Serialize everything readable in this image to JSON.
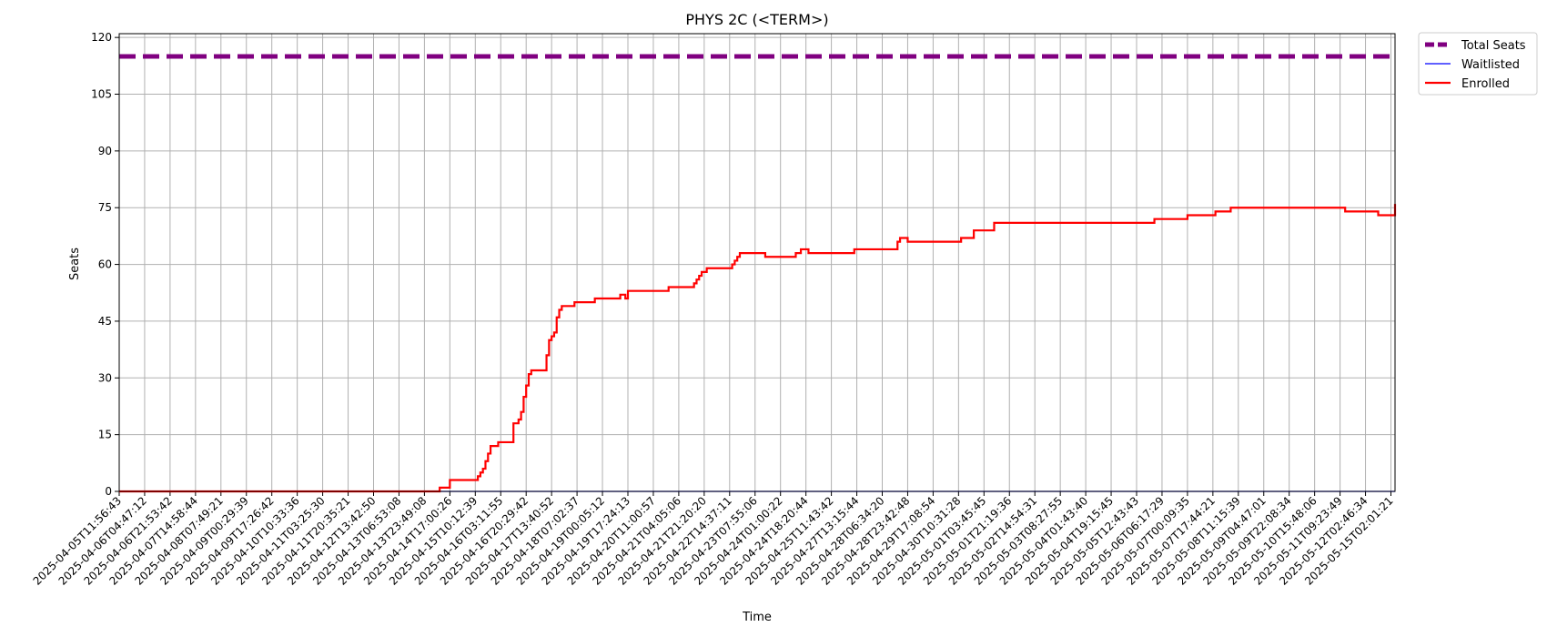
{
  "chart_data": {
    "type": "line",
    "title": "PHYS 2C (<TERM>)",
    "xlabel": "Time",
    "ylabel": "Seats",
    "ylim": [
      0,
      121
    ],
    "yticks": [
      0,
      15,
      30,
      45,
      60,
      75,
      90,
      105,
      120
    ],
    "grid": true,
    "legend_position": "outside-top-right",
    "x_ticks": [
      "2025-04-05T11:56:43",
      "2025-04-06T04:47:12",
      "2025-04-06T21:53:42",
      "2025-04-07T14:58:44",
      "2025-04-08T07:49:21",
      "2025-04-09T00:29:39",
      "2025-04-09T17:26:42",
      "2025-04-10T10:33:36",
      "2025-04-11T03:25:30",
      "2025-04-11T20:35:21",
      "2025-04-12T13:42:50",
      "2025-04-13T06:53:08",
      "2025-04-13T23:49:08",
      "2025-04-14T17:00:26",
      "2025-04-15T10:12:39",
      "2025-04-16T03:11:55",
      "2025-04-16T20:29:42",
      "2025-04-17T13:40:52",
      "2025-04-18T07:02:37",
      "2025-04-19T00:05:12",
      "2025-04-19T17:24:13",
      "2025-04-20T11:00:57",
      "2025-04-21T04:05:06",
      "2025-04-21T21:20:20",
      "2025-04-22T14:37:11",
      "2025-04-23T07:55:06",
      "2025-04-24T01:00:22",
      "2025-04-24T18:20:44",
      "2025-04-25T11:43:42",
      "2025-04-27T13:15:44",
      "2025-04-28T06:34:20",
      "2025-04-28T23:42:48",
      "2025-04-29T17:08:54",
      "2025-04-30T10:31:28",
      "2025-05-01T03:45:45",
      "2025-05-01T21:19:36",
      "2025-05-02T14:54:31",
      "2025-05-03T08:27:55",
      "2025-05-04T01:43:40",
      "2025-05-04T19:15:45",
      "2025-05-05T12:43:43",
      "2025-05-06T06:17:29",
      "2025-05-07T00:09:35",
      "2025-05-07T17:44:21",
      "2025-05-08T11:15:39",
      "2025-05-09T04:47:01",
      "2025-05-09T22:08:34",
      "2025-05-10T15:48:06",
      "2025-05-11T09:23:49",
      "2025-05-12T02:46:34",
      "2025-05-15T02:01:21"
    ],
    "series": [
      {
        "name": "Total Seats",
        "color": "#800080",
        "style": "dashed",
        "constant": 115
      },
      {
        "name": "Waitlisted",
        "color": "#0000ff",
        "style": "solid",
        "constant": 0
      },
      {
        "name": "Enrolled",
        "color": "#ff0000",
        "style": "step",
        "points": [
          [
            0,
            0
          ],
          [
            12.5,
            0
          ],
          [
            12.6,
            1
          ],
          [
            12.9,
            1
          ],
          [
            13.0,
            3
          ],
          [
            14.0,
            3
          ],
          [
            14.1,
            4
          ],
          [
            14.2,
            5
          ],
          [
            14.3,
            6
          ],
          [
            14.4,
            8
          ],
          [
            14.5,
            10
          ],
          [
            14.6,
            12
          ],
          [
            14.8,
            12
          ],
          [
            14.9,
            13
          ],
          [
            15.4,
            13
          ],
          [
            15.5,
            18
          ],
          [
            15.7,
            19
          ],
          [
            15.8,
            21
          ],
          [
            15.9,
            25
          ],
          [
            16.0,
            28
          ],
          [
            16.1,
            31
          ],
          [
            16.2,
            32
          ],
          [
            16.7,
            32
          ],
          [
            16.8,
            36
          ],
          [
            16.9,
            40
          ],
          [
            17.0,
            41
          ],
          [
            17.1,
            42
          ],
          [
            17.2,
            46
          ],
          [
            17.3,
            48
          ],
          [
            17.4,
            49
          ],
          [
            17.8,
            49
          ],
          [
            17.9,
            50
          ],
          [
            18.6,
            50
          ],
          [
            18.7,
            51
          ],
          [
            19.6,
            51
          ],
          [
            19.7,
            52
          ],
          [
            19.9,
            51
          ],
          [
            20.0,
            53
          ],
          [
            21.5,
            53
          ],
          [
            21.6,
            54
          ],
          [
            22.5,
            54
          ],
          [
            22.6,
            55
          ],
          [
            22.7,
            56
          ],
          [
            22.8,
            57
          ],
          [
            22.9,
            58
          ],
          [
            23.1,
            59
          ],
          [
            24.0,
            59
          ],
          [
            24.1,
            60
          ],
          [
            24.2,
            61
          ],
          [
            24.3,
            62
          ],
          [
            24.4,
            63
          ],
          [
            25.3,
            63
          ],
          [
            25.4,
            62
          ],
          [
            26.3,
            62
          ],
          [
            26.6,
            63
          ],
          [
            26.8,
            64
          ],
          [
            27.1,
            63
          ],
          [
            28.8,
            63
          ],
          [
            28.9,
            64
          ],
          [
            30.5,
            64
          ],
          [
            30.6,
            66
          ],
          [
            30.7,
            67
          ],
          [
            31.0,
            66
          ],
          [
            33.0,
            66
          ],
          [
            33.1,
            67
          ],
          [
            33.5,
            67
          ],
          [
            33.6,
            69
          ],
          [
            34.3,
            69
          ],
          [
            34.4,
            71
          ],
          [
            40.6,
            71
          ],
          [
            40.7,
            72
          ],
          [
            41.9,
            72
          ],
          [
            42.0,
            73
          ],
          [
            43.0,
            73
          ],
          [
            43.1,
            74
          ],
          [
            43.6,
            74
          ],
          [
            43.7,
            75
          ],
          [
            45.4,
            75
          ],
          [
            48.1,
            75
          ],
          [
            48.2,
            74
          ],
          [
            49.4,
            74
          ],
          [
            49.5,
            73
          ],
          [
            51.0,
            73
          ],
          [
            51.1,
            76
          ],
          [
            51.6,
            76
          ],
          [
            51.7,
            75
          ],
          [
            52.0,
            75
          ]
        ]
      }
    ]
  }
}
